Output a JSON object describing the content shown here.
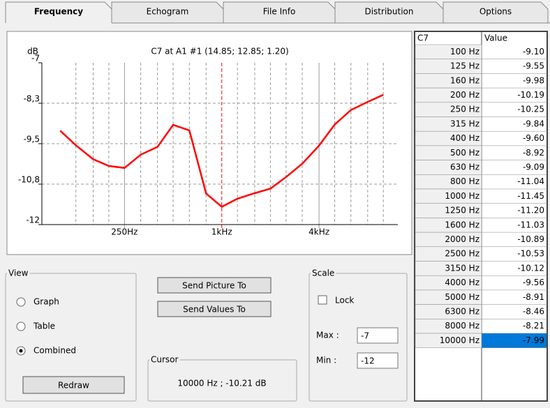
{
  "tabs": [
    "Frequency",
    "Echogram",
    "File Info",
    "Distribution",
    "Options"
  ],
  "graph": {
    "type": "line",
    "title": "C7 at A1 #1  (14.85; 12.85; 1.20)",
    "y_label": "dB",
    "x": [
      100,
      125,
      160,
      200,
      250,
      315,
      400,
      500,
      630,
      800,
      1000,
      1250,
      1600,
      2000,
      2500,
      3150,
      4000,
      5000,
      6300,
      8000,
      10000
    ],
    "series": [
      {
        "color": "#ff0000",
        "values": [
          -9.1,
          -9.55,
          -9.98,
          -10.19,
          -10.25,
          -9.84,
          -9.6,
          -8.92,
          -9.09,
          -11.04,
          -11.45,
          -11.2,
          -11.03,
          -10.89,
          -10.53,
          -10.12,
          -9.56,
          -8.91,
          -8.46,
          -8.21,
          -7.99
        ]
      }
    ],
    "xscale": "log",
    "xlim": [
      77,
      12300
    ],
    "xticks": [
      {
        "value": 250,
        "label": "250Hz"
      },
      {
        "value": 1000,
        "label": "1kHz"
      },
      {
        "value": 4000,
        "label": "4kHz"
      }
    ],
    "xminor": [
      125,
      160,
      200,
      315,
      400,
      500,
      630,
      800,
      1250,
      1600,
      2000,
      2500,
      3150,
      5000,
      6300,
      8000,
      10000
    ],
    "ylim": [
      -12,
      -7
    ],
    "yticks": [
      -7,
      {
        "value": -8.25,
        "label": "-8,3"
      },
      {
        "value": -9.5,
        "label": "-9,5"
      },
      {
        "value": -10.75,
        "label": "-10,8"
      },
      -12
    ],
    "grid": true
  },
  "table": {
    "columns": [
      "C7",
      "Value"
    ],
    "rows": [
      [
        "100 Hz",
        "-9.10"
      ],
      [
        "125 Hz",
        "-9.55"
      ],
      [
        "160 Hz",
        "-9.98"
      ],
      [
        "200 Hz",
        "-10.19"
      ],
      [
        "250 Hz",
        "-10.25"
      ],
      [
        "315 Hz",
        "-9.84"
      ],
      [
        "400 Hz",
        "-9.60"
      ],
      [
        "500 Hz",
        "-8.92"
      ],
      [
        "630 Hz",
        "-9.09"
      ],
      [
        "800 Hz",
        "-11.04"
      ],
      [
        "1000 Hz",
        "-11.45"
      ],
      [
        "1250 Hz",
        "-11.20"
      ],
      [
        "1600 Hz",
        "-11.03"
      ],
      [
        "2000 Hz",
        "-10.89"
      ],
      [
        "2500 Hz",
        "-10.53"
      ],
      [
        "3150 Hz",
        "-10.12"
      ],
      [
        "4000 Hz",
        "-9.56"
      ],
      [
        "5000 Hz",
        "-8.91"
      ],
      [
        "6300 Hz",
        "-8.46"
      ],
      [
        "8000 Hz",
        "-8.21"
      ],
      [
        "10000 Hz",
        "-7.99"
      ]
    ],
    "selected_row": 20
  },
  "view": {
    "title": "View",
    "options": [
      "Graph",
      "Table",
      "Combined"
    ],
    "selected": 2,
    "button": "Redraw"
  },
  "buttons": [
    "Send Picture To",
    "Send Values To"
  ],
  "cursor": {
    "title": "Cursor",
    "text": "10000 Hz ; -10.21 dB"
  },
  "scale": {
    "title": "Scale",
    "lock": "Lock",
    "locked": false,
    "max_label": "Max :",
    "max": "-7",
    "min_label": "Min :",
    "min": "-12"
  }
}
